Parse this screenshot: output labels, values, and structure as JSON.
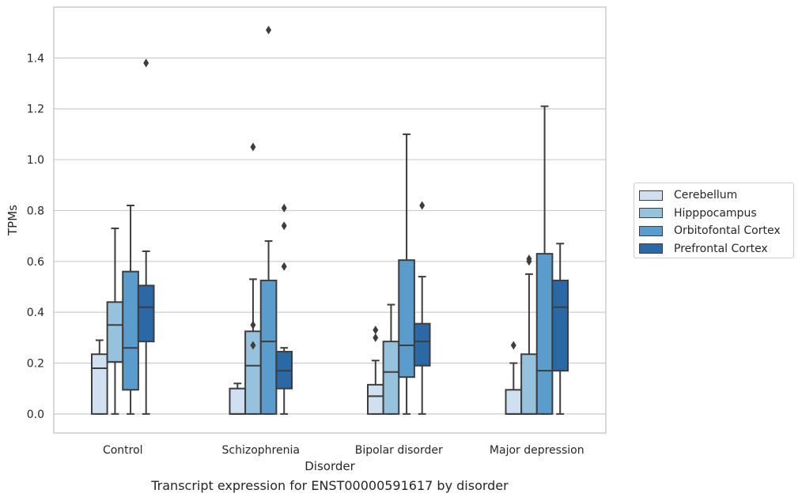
{
  "chart_data": {
    "type": "box",
    "title": "Transcript expression for ENST00000591617 by disorder",
    "xlabel": "Disorder",
    "ylabel": "TPMs",
    "ylim": [
      -0.075,
      1.6
    ],
    "yticks": [
      "0.0",
      "0.2",
      "0.4",
      "0.6",
      "0.8",
      "1.0",
      "1.2",
      "1.4"
    ],
    "grid": true,
    "legend_position": "right",
    "categories": [
      "Control",
      "Schizophrenia",
      "Bipolar disorder",
      "Major depression"
    ],
    "series": [
      {
        "name": "Cerebellum",
        "color": "#d0e0f0",
        "boxes": [
          {
            "whisker_low": 0.0,
            "q1": 0.0,
            "median": 0.18,
            "q3": 0.235,
            "whisker_high": 0.29,
            "outliers": []
          },
          {
            "whisker_low": 0.0,
            "q1": 0.0,
            "median": 0.0,
            "q3": 0.1,
            "whisker_high": 0.12,
            "outliers": []
          },
          {
            "whisker_low": 0.0,
            "q1": 0.0,
            "median": 0.07,
            "q3": 0.115,
            "whisker_high": 0.21,
            "outliers": [
              0.3,
              0.33
            ]
          },
          {
            "whisker_low": 0.0,
            "q1": 0.0,
            "median": 0.0,
            "q3": 0.095,
            "whisker_high": 0.2,
            "outliers": [
              0.27
            ]
          }
        ]
      },
      {
        "name": "Hipppocampus",
        "color": "#97c2de",
        "boxes": [
          {
            "whisker_low": 0.0,
            "q1": 0.205,
            "median": 0.35,
            "q3": 0.44,
            "whisker_high": 0.73,
            "outliers": []
          },
          {
            "whisker_low": 0.0,
            "q1": 0.0,
            "median": 0.19,
            "q3": 0.325,
            "whisker_high": 0.53,
            "outliers": [
              0.27,
              0.35,
              1.05
            ]
          },
          {
            "whisker_low": 0.0,
            "q1": 0.0,
            "median": 0.165,
            "q3": 0.285,
            "whisker_high": 0.43,
            "outliers": []
          },
          {
            "whisker_low": 0.0,
            "q1": 0.0,
            "median": 0.0,
            "q3": 0.235,
            "whisker_high": 0.55,
            "outliers": [
              0.6,
              0.61
            ]
          }
        ]
      },
      {
        "name": "Orbitofontal Cortex",
        "color": "#5a9ccc",
        "boxes": [
          {
            "whisker_low": 0.0,
            "q1": 0.095,
            "median": 0.26,
            "q3": 0.56,
            "whisker_high": 0.82,
            "outliers": []
          },
          {
            "whisker_low": 0.0,
            "q1": 0.0,
            "median": 0.285,
            "q3": 0.525,
            "whisker_high": 0.68,
            "outliers": [
              1.51
            ]
          },
          {
            "whisker_low": 0.0,
            "q1": 0.145,
            "median": 0.27,
            "q3": 0.605,
            "whisker_high": 1.1,
            "outliers": []
          },
          {
            "whisker_low": 0.0,
            "q1": 0.0,
            "median": 0.17,
            "q3": 0.63,
            "whisker_high": 1.21,
            "outliers": []
          }
        ]
      },
      {
        "name": "Prefrontal Cortex",
        "color": "#2b69a6",
        "boxes": [
          {
            "whisker_low": 0.0,
            "q1": 0.285,
            "median": 0.42,
            "q3": 0.505,
            "whisker_high": 0.64,
            "outliers": [
              1.38
            ]
          },
          {
            "whisker_low": 0.0,
            "q1": 0.1,
            "median": 0.17,
            "q3": 0.245,
            "whisker_high": 0.26,
            "outliers": [
              0.58,
              0.74,
              0.81
            ]
          },
          {
            "whisker_low": 0.0,
            "q1": 0.19,
            "median": 0.285,
            "q3": 0.355,
            "whisker_high": 0.54,
            "outliers": [
              0.82
            ]
          },
          {
            "whisker_low": 0.0,
            "q1": 0.17,
            "median": 0.42,
            "q3": 0.525,
            "whisker_high": 0.67,
            "outliers": []
          }
        ]
      }
    ]
  }
}
